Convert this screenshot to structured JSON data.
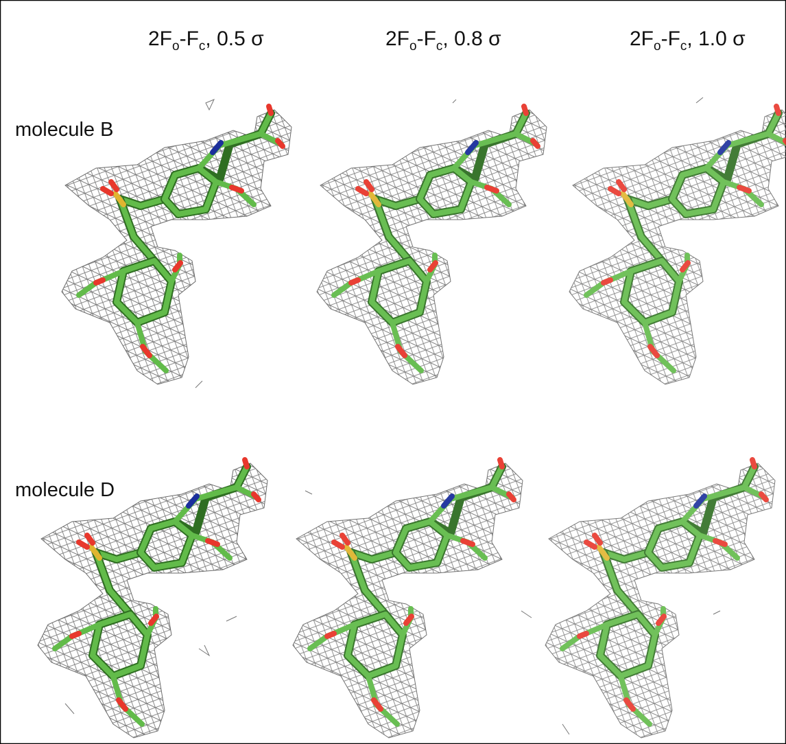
{
  "columns": [
    {
      "label": [
        "2F",
        "o",
        "-F",
        "c",
        ", 0.5 σ"
      ]
    },
    {
      "label": [
        "2F",
        "o",
        "-F",
        "c",
        ", 0.8 σ"
      ]
    },
    {
      "label": [
        "2F",
        "o",
        "-F",
        "c",
        ", 1.0 σ"
      ]
    }
  ],
  "rows": [
    "molecule B",
    "molecule D"
  ]
}
